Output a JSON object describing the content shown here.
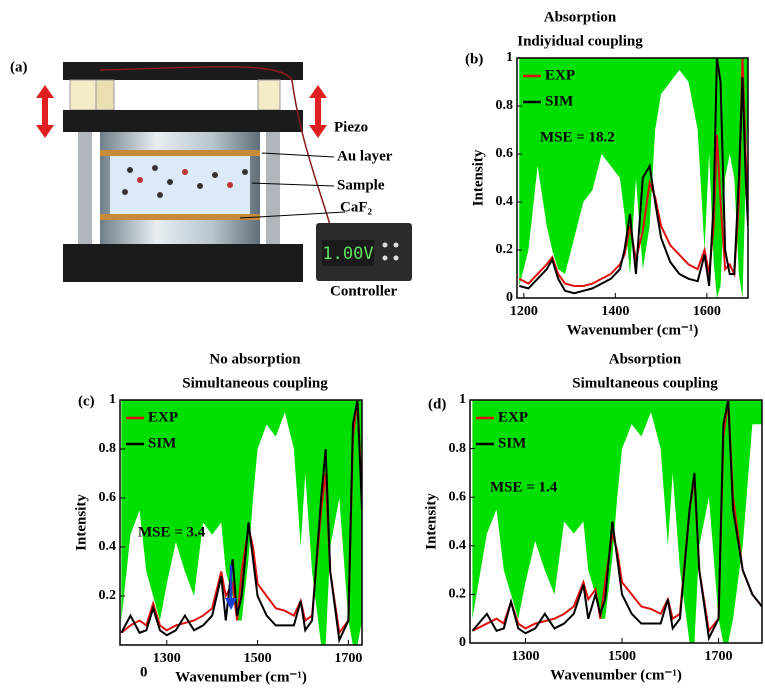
{
  "diagram": {
    "label": "(a)",
    "piezo": "Piezo",
    "au": "Au layer",
    "sample": "Sample",
    "caf2": "CaF₂",
    "voltage": "1.00V",
    "controller": "Controller"
  },
  "chart_data": [
    {
      "type": "line",
      "label": "(b)",
      "title": "Absorption",
      "subtitle": "Indiyidual coupling",
      "xlabel": "Wavenumber (cm⁻¹)",
      "ylabel": "Intensity",
      "xlim": [
        1185,
        1690
      ],
      "xticks": [
        1200,
        1400,
        1600
      ],
      "ylim": [
        0,
        1
      ],
      "yticks": [
        0,
        0.2,
        0.4,
        0.6,
        0.8,
        1
      ],
      "legend": "upper left",
      "annotations": [
        "MSE = 18.2"
      ],
      "x": [
        1190,
        1210,
        1230,
        1250,
        1262,
        1275,
        1290,
        1310,
        1330,
        1350,
        1370,
        1390,
        1410,
        1420,
        1432,
        1445,
        1460,
        1475,
        1487,
        1500,
        1520,
        1540,
        1560,
        1580,
        1595,
        1605,
        1615,
        1622,
        1630,
        1640,
        1650,
        1660,
        1670,
        1678,
        1685,
        1690
      ],
      "shade": {
        "color": "#00e000",
        "values": [
          0.05,
          0.2,
          0.55,
          0.3,
          0.2,
          0.12,
          0.1,
          0.25,
          0.4,
          0.45,
          0.6,
          0.55,
          0.5,
          0.35,
          0.1,
          0.5,
          0.12,
          0.3,
          0.7,
          0.85,
          0.9,
          0.95,
          0.9,
          0.7,
          0.2,
          0.6,
          0.15,
          0.0,
          0.05,
          0.5,
          0.6,
          0.5,
          0.1,
          0.0,
          0.5,
          0.8
        ]
      },
      "series": [
        {
          "name": "EXP",
          "color": "#e01010",
          "values": [
            0.08,
            0.06,
            0.1,
            0.14,
            0.17,
            0.1,
            0.06,
            0.05,
            0.05,
            0.06,
            0.08,
            0.1,
            0.14,
            0.18,
            0.3,
            0.16,
            0.28,
            0.48,
            0.42,
            0.3,
            0.22,
            0.18,
            0.14,
            0.12,
            0.2,
            0.1,
            0.3,
            0.68,
            0.4,
            0.12,
            0.14,
            0.1,
            0.4,
            1.0,
            0.6,
            0.4
          ]
        },
        {
          "name": "SIM",
          "color": "#000000",
          "values": [
            0.05,
            0.04,
            0.08,
            0.12,
            0.16,
            0.08,
            0.03,
            0.02,
            0.03,
            0.04,
            0.06,
            0.08,
            0.12,
            0.2,
            0.35,
            0.1,
            0.5,
            0.55,
            0.4,
            0.25,
            0.15,
            0.1,
            0.08,
            0.07,
            0.18,
            0.05,
            0.4,
            1.0,
            0.9,
            0.2,
            0.1,
            0.1,
            0.5,
            0.92,
            0.5,
            0.3
          ]
        }
      ]
    },
    {
      "type": "line",
      "label": "(c)",
      "title": "No absorption",
      "subtitle": "Simultaneous coupling",
      "xlabel": "Wavenumber (cm⁻¹)",
      "ylabel": "Intensity",
      "xlim": [
        1197,
        1730
      ],
      "xticks": [
        1300,
        1500,
        1700
      ],
      "ylim": [
        0,
        1
      ],
      "yticks": [
        0.2,
        0.4,
        0.6,
        0.8,
        1
      ],
      "legend": "upper left",
      "annotations": [
        "MSE = 3.4",
        "0"
      ],
      "x": [
        1200,
        1220,
        1240,
        1255,
        1270,
        1285,
        1300,
        1320,
        1340,
        1360,
        1380,
        1400,
        1420,
        1430,
        1445,
        1455,
        1465,
        1480,
        1490,
        1500,
        1520,
        1540,
        1560,
        1580,
        1595,
        1605,
        1620,
        1640,
        1650,
        1660,
        1680,
        1700,
        1710,
        1720,
        1730
      ],
      "shade": {
        "color": "#00e000",
        "values": [
          0.1,
          0.45,
          0.55,
          0.3,
          0.2,
          0.1,
          0.25,
          0.42,
          0.3,
          0.2,
          0.5,
          0.45,
          0.5,
          0.3,
          0.2,
          0.1,
          0.1,
          0.35,
          0.6,
          0.8,
          0.9,
          0.85,
          0.95,
          0.8,
          0.4,
          0.7,
          0.3,
          0.0,
          0.0,
          0.4,
          0.6,
          0.1,
          0.0,
          0.0,
          0.1
        ]
      },
      "series": [
        {
          "name": "EXP",
          "color": "#e01010",
          "values": [
            0.05,
            0.08,
            0.1,
            0.08,
            0.17,
            0.08,
            0.06,
            0.08,
            0.09,
            0.1,
            0.12,
            0.15,
            0.3,
            0.2,
            0.25,
            0.1,
            0.3,
            0.48,
            0.4,
            0.25,
            0.2,
            0.15,
            0.14,
            0.12,
            0.18,
            0.1,
            0.12,
            0.55,
            0.7,
            0.3,
            0.05,
            0.1,
            0.85,
            1.0,
            0.6
          ]
        },
        {
          "name": "SIM",
          "color": "#000000",
          "values": [
            0.05,
            0.12,
            0.05,
            0.06,
            0.15,
            0.06,
            0.04,
            0.06,
            0.12,
            0.06,
            0.08,
            0.12,
            0.28,
            0.1,
            0.35,
            0.12,
            0.2,
            0.5,
            0.35,
            0.2,
            0.12,
            0.08,
            0.08,
            0.08,
            0.18,
            0.06,
            0.1,
            0.6,
            0.8,
            0.3,
            0.02,
            0.1,
            0.9,
            1.0,
            0.55
          ]
        }
      ]
    },
    {
      "type": "line",
      "label": "(d)",
      "title": "Absorption",
      "subtitle": "Simultaneous coupling",
      "xlabel": "Wavenumber (cm⁻¹)",
      "ylabel": "Intensity",
      "xlim": [
        1185,
        1790
      ],
      "xticks": [
        1300,
        1500,
        1700
      ],
      "ylim": [
        0,
        1
      ],
      "yticks": [
        0,
        0.2,
        0.4,
        0.6,
        0.8,
        1
      ],
      "legend": "upper left",
      "annotations": [
        "MSE = 1.4"
      ],
      "x": [
        1190,
        1220,
        1240,
        1255,
        1270,
        1285,
        1300,
        1320,
        1340,
        1360,
        1380,
        1400,
        1420,
        1430,
        1445,
        1455,
        1465,
        1480,
        1490,
        1500,
        1520,
        1540,
        1560,
        1580,
        1595,
        1605,
        1620,
        1640,
        1650,
        1660,
        1680,
        1700,
        1710,
        1720,
        1730,
        1750,
        1770,
        1790
      ],
      "shade": {
        "color": "#00e000",
        "values": [
          0.1,
          0.45,
          0.55,
          0.3,
          0.2,
          0.1,
          0.25,
          0.42,
          0.3,
          0.2,
          0.5,
          0.45,
          0.5,
          0.3,
          0.2,
          0.1,
          0.1,
          0.35,
          0.6,
          0.8,
          0.9,
          0.85,
          0.95,
          0.8,
          0.4,
          0.7,
          0.3,
          0.0,
          0.0,
          0.4,
          0.6,
          0.1,
          0.0,
          0.0,
          0.1,
          0.4,
          0.9,
          0.9
        ]
      },
      "series": [
        {
          "name": "EXP",
          "color": "#e01010",
          "values": [
            0.05,
            0.08,
            0.1,
            0.08,
            0.17,
            0.08,
            0.06,
            0.08,
            0.09,
            0.1,
            0.12,
            0.15,
            0.25,
            0.18,
            0.22,
            0.1,
            0.25,
            0.45,
            0.38,
            0.25,
            0.2,
            0.15,
            0.14,
            0.12,
            0.18,
            0.1,
            0.12,
            0.55,
            0.68,
            0.3,
            0.05,
            0.1,
            0.85,
            1.0,
            0.6,
            0.3,
            0.2,
            0.15
          ]
        },
        {
          "name": "SIM",
          "color": "#000000",
          "values": [
            0.05,
            0.12,
            0.05,
            0.06,
            0.17,
            0.06,
            0.04,
            0.06,
            0.12,
            0.06,
            0.08,
            0.12,
            0.24,
            0.1,
            0.2,
            0.12,
            0.18,
            0.5,
            0.35,
            0.2,
            0.12,
            0.08,
            0.08,
            0.08,
            0.18,
            0.06,
            0.1,
            0.55,
            0.7,
            0.3,
            0.02,
            0.1,
            0.9,
            1.0,
            0.55,
            0.3,
            0.2,
            0.15
          ]
        }
      ]
    }
  ]
}
